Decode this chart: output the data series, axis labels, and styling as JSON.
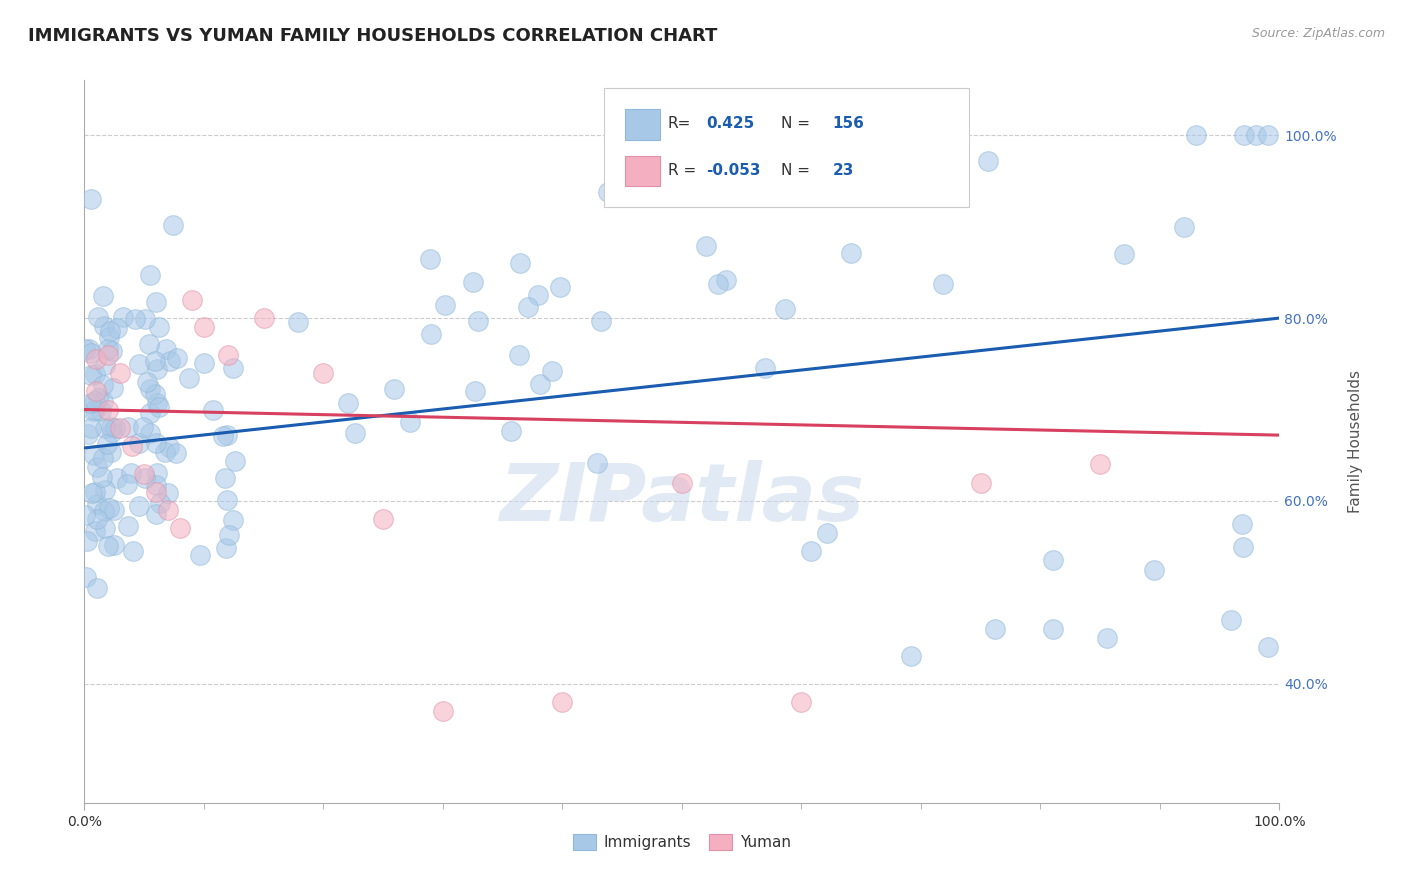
{
  "title": "IMMIGRANTS VS YUMAN FAMILY HOUSEHOLDS CORRELATION CHART",
  "source": "Source: ZipAtlas.com",
  "ylabel": "Family Households",
  "watermark": "ZIPatlas",
  "legend_immigrants_R": "0.425",
  "legend_immigrants_N": "156",
  "legend_yuman_R": "-0.053",
  "legend_yuman_N": "23",
  "immigrants_color": "#a8c8e8",
  "yuman_color": "#f4b0c0",
  "immigrants_edge_color": "#90b8d8",
  "yuman_edge_color": "#e090a8",
  "line_immigrants_color": "#1a5cb0",
  "line_yuman_color": "#d84060",
  "xlim": [
    0.0,
    1.0
  ],
  "ylim": [
    0.27,
    1.06
  ],
  "xtick_labels": [
    "0.0%",
    "100.0%"
  ],
  "ytick_labels": [
    "40.0%",
    "60.0%",
    "80.0%",
    "100.0%"
  ],
  "ytick_values": [
    0.4,
    0.6,
    0.8,
    1.0
  ],
  "grid_color": "#cccccc",
  "background_color": "#ffffff",
  "title_color": "#222222",
  "title_fontsize": 13,
  "ytick_color": "#4472c4",
  "axis_label_color": "#555555",
  "imm_line_y0": 0.658,
  "imm_line_y1": 0.8,
  "yum_line_y0": 0.7,
  "yum_line_y1": 0.672
}
